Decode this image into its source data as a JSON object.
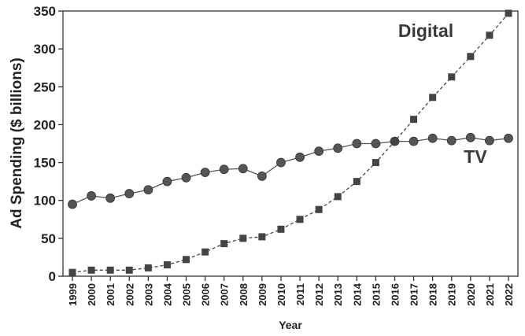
{
  "chart_data": {
    "type": "line",
    "xlabel": "Year",
    "ylabel": "Ad Spending ($ billions)",
    "ylim": [
      0,
      350
    ],
    "yticks": [
      0,
      50,
      100,
      150,
      200,
      250,
      300,
      350
    ],
    "grid": false,
    "x": [
      1999,
      2000,
      2001,
      2002,
      2003,
      2004,
      2005,
      2006,
      2007,
      2008,
      2009,
      2010,
      2011,
      2012,
      2013,
      2014,
      2015,
      2016,
      2017,
      2018,
      2019,
      2020,
      2021,
      2022
    ],
    "series": [
      {
        "name": "TV",
        "marker": "circle",
        "line_style": "solid",
        "color": "#555555",
        "values": [
          95,
          106,
          103,
          109,
          114,
          125,
          130,
          137,
          141,
          142,
          132,
          150,
          157,
          165,
          169,
          175,
          175,
          178,
          178,
          182,
          179,
          183,
          179,
          182
        ]
      },
      {
        "name": "Digital",
        "marker": "square",
        "line_style": "dashed",
        "color": "#444444",
        "values": [
          5,
          8,
          8,
          8,
          11,
          15,
          22,
          32,
          43,
          50,
          52,
          62,
          75,
          88,
          105,
          125,
          150,
          178,
          207,
          236,
          263,
          290,
          318,
          347
        ]
      }
    ]
  }
}
